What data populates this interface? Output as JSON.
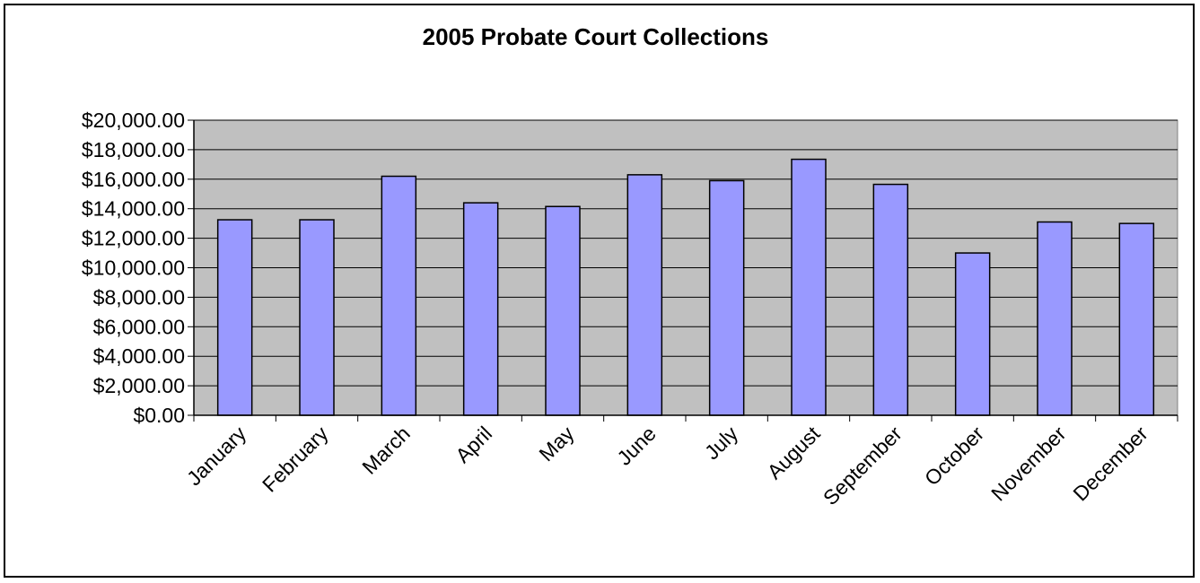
{
  "chart_data": {
    "type": "bar",
    "title": "2005 Probate Court Collections",
    "xlabel": "",
    "ylabel": "",
    "categories": [
      "January",
      "February",
      "March",
      "April",
      "May",
      "June",
      "July",
      "August",
      "September",
      "October",
      "November",
      "December"
    ],
    "values": [
      13250,
      13250,
      16200,
      14400,
      14150,
      16300,
      15900,
      17350,
      15650,
      11000,
      13100,
      13000
    ],
    "ylim": [
      0,
      20000
    ],
    "yticks": [
      0,
      2000,
      4000,
      6000,
      8000,
      10000,
      12000,
      14000,
      16000,
      18000,
      20000
    ],
    "ytick_labels": [
      "$0.00",
      "$2,000.00",
      "$4,000.00",
      "$6,000.00",
      "$8,000.00",
      "$10,000.00",
      "$12,000.00",
      "$14,000.00",
      "$16,000.00",
      "$18,000.00",
      "$20,000.00"
    ],
    "grid": true,
    "legend": "none",
    "colors": {
      "bar_fill": "#9999ff",
      "bar_stroke": "#000000",
      "plot_background": "#c0c0c0",
      "gridline": "#000000"
    }
  }
}
